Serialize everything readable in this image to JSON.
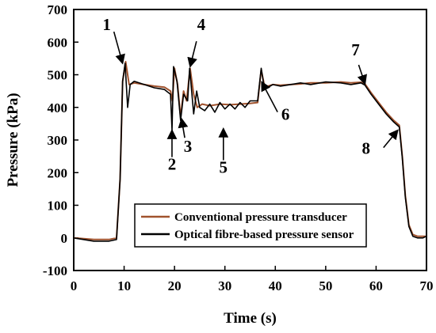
{
  "chart_data": {
    "type": "line",
    "xlabel": "Time (s)",
    "ylabel": "Pressure (kPa)",
    "xlim": [
      0,
      70
    ],
    "ylim": [
      -100,
      700
    ],
    "xticks": [
      "0",
      "10",
      "20",
      "30",
      "40",
      "50",
      "60",
      "70"
    ],
    "yticks": [
      "-100",
      "0",
      "100",
      "200",
      "300",
      "400",
      "500",
      "600",
      "700"
    ],
    "grid": false,
    "legend_position": "lower-center",
    "series": [
      {
        "name": "Conventional pressure transducer",
        "color": "#a0522d",
        "x": [
          0,
          4,
          7,
          8.5,
          9.2,
          9.7,
          10.3,
          11,
          12,
          14,
          16,
          18,
          19.2,
          19.6,
          20,
          20.6,
          21.2,
          21.8,
          22.4,
          23.1,
          23.8,
          24.5,
          25.5,
          27,
          29,
          31,
          33,
          35,
          36.5,
          37.2,
          37.8,
          38.5,
          39.5,
          41,
          43,
          45,
          47,
          50,
          53,
          55,
          57,
          57.8,
          59,
          60.5,
          62,
          63.5,
          64.6,
          65.2,
          65.8,
          66.5,
          67.3,
          68.2,
          69.3,
          70
        ],
        "y": [
          0,
          -5,
          -5,
          0,
          180,
          480,
          540,
          470,
          475,
          470,
          465,
          462,
          450,
          420,
          520,
          470,
          370,
          450,
          420,
          520,
          440,
          400,
          410,
          405,
          410,
          408,
          410,
          412,
          415,
          515,
          470,
          465,
          470,
          468,
          470,
          472,
          475,
          475,
          478,
          475,
          477,
          472,
          445,
          415,
          385,
          360,
          345,
          250,
          130,
          40,
          10,
          5,
          5,
          5
        ]
      },
      {
        "name": "Optical fibre-based pressure sensor",
        "color": "#000000",
        "x": [
          0,
          4,
          7,
          8.5,
          9.2,
          9.7,
          10.2,
          10.7,
          11.2,
          12,
          14,
          16,
          18,
          19.2,
          19.5,
          19.8,
          20.5,
          21.2,
          21.8,
          22.6,
          23,
          23.8,
          24.4,
          25,
          26,
          27,
          28,
          29,
          30,
          31,
          32,
          33,
          34,
          35,
          36.5,
          37.2,
          37.7,
          38.4,
          39.5,
          41,
          43,
          45,
          47,
          50,
          53,
          55,
          57,
          57.8,
          59,
          60.5,
          62,
          63.5,
          64.6,
          65.2,
          65.8,
          66.5,
          67.3,
          68.2,
          69.3,
          70
        ],
        "y": [
          0,
          -10,
          -10,
          -5,
          180,
          480,
          535,
          400,
          470,
          480,
          470,
          460,
          455,
          440,
          330,
          525,
          480,
          360,
          440,
          420,
          520,
          380,
          450,
          400,
          390,
          410,
          385,
          415,
          395,
          410,
          395,
          415,
          400,
          420,
          420,
          520,
          470,
          460,
          470,
          465,
          470,
          475,
          470,
          478,
          475,
          470,
          475,
          468,
          440,
          410,
          380,
          355,
          340,
          245,
          125,
          35,
          5,
          0,
          0,
          5
        ]
      }
    ],
    "annotations": [
      {
        "label": "1",
        "arrow_to": [
          9.7,
          535
        ]
      },
      {
        "label": "2",
        "arrow_to": [
          19.5,
          330
        ]
      },
      {
        "label": "3",
        "arrow_to": [
          21.4,
          365
        ]
      },
      {
        "label": "4",
        "arrow_to": [
          23.1,
          525
        ]
      },
      {
        "label": "5",
        "arrow_to": [
          29.7,
          335
        ]
      },
      {
        "label": "6",
        "arrow_to": [
          37.3,
          478
        ]
      },
      {
        "label": "7",
        "arrow_to": [
          57.8,
          472
        ]
      },
      {
        "label": "8",
        "arrow_to": [
          64.3,
          330
        ]
      }
    ]
  }
}
